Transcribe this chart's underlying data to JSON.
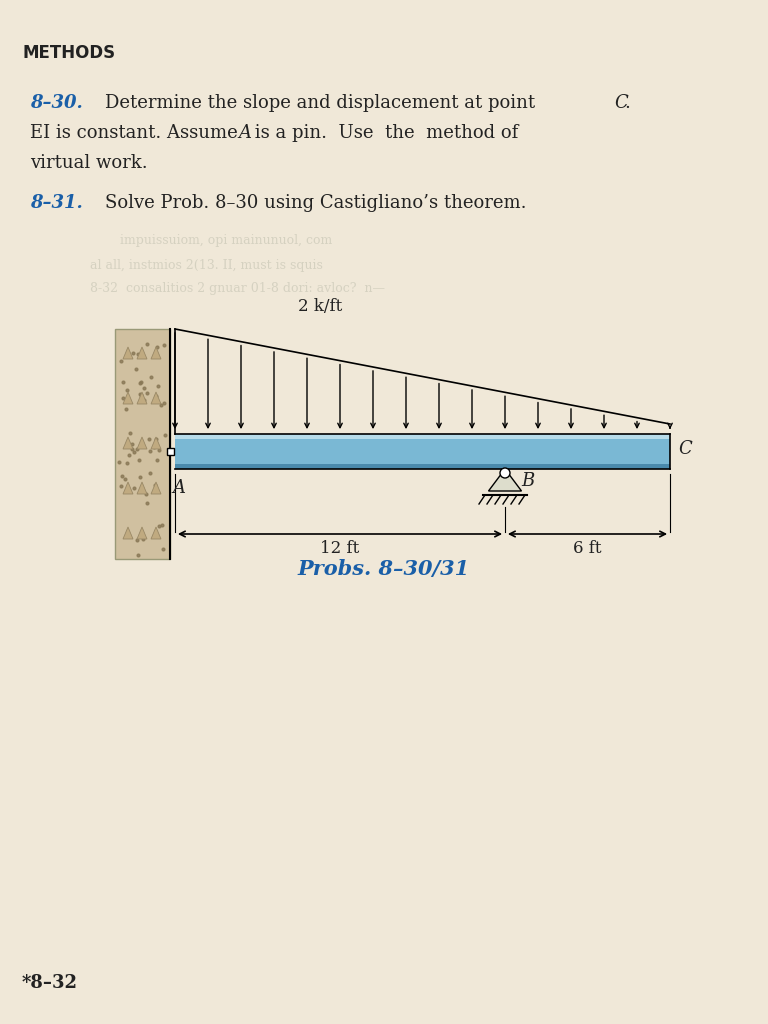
{
  "page_bg": "#f0e8d8",
  "title_section": "METHODS",
  "problem_830_label": "8–30.",
  "problem_831_label": "8–31.",
  "caption": "Probs. 8–30/31",
  "load_label": "2 k/ft",
  "dim_12ft": "12 ft",
  "dim_6ft": "6 ft",
  "label_A": "A",
  "label_B": "B",
  "label_C": "C",
  "beam_color": "#7ab8d4",
  "beam_dark": "#4a8aac",
  "beam_light": "#b8dcea",
  "wall_color": "#d0c0a0",
  "arrow_color": "#222222",
  "blue_label_color": "#1a5fa8",
  "text_color": "#222222",
  "footer_text": "*8–32"
}
